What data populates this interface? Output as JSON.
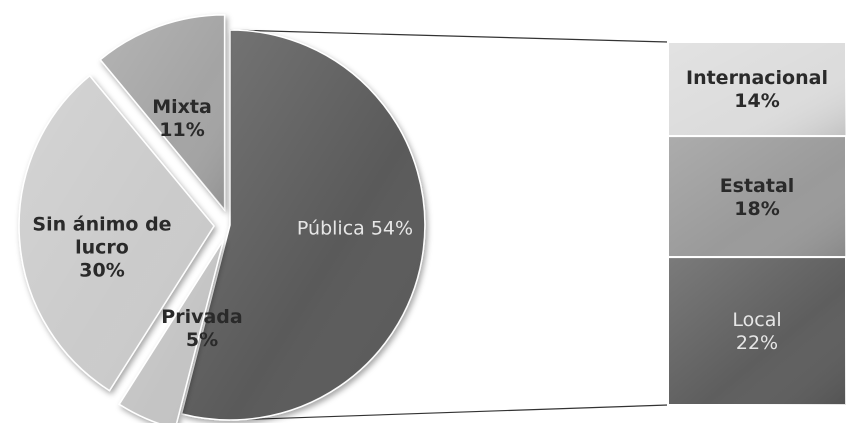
{
  "chart_data": {
    "type": "bar-of-pie",
    "title": "",
    "pie": [
      {
        "label_lines": [
          "Pública 54%"
        ],
        "name": "Pública",
        "value": 54,
        "color": "#5a5a5a",
        "label_color": "#e6e6e6",
        "bold": false
      },
      {
        "label_lines": [
          "Privada",
          "5%"
        ],
        "name": "Privada",
        "value": 5,
        "color": "#c4c4c4",
        "label_color": "#2a2a2a",
        "bold": true
      },
      {
        "label_lines": [
          "Sin ánimo de",
          "lucro",
          "30%"
        ],
        "name": "Sin ánimo de lucro",
        "value": 30,
        "color": "#cbcbcb",
        "label_color": "#2a2a2a",
        "bold": true
      },
      {
        "label_lines": [
          "Mixta",
          "11%"
        ],
        "name": "Mixta",
        "value": 11,
        "color": "#a4a4a4",
        "label_color": "#2a2a2a",
        "bold": true
      }
    ],
    "breakdown_of": "Pública",
    "bar": [
      {
        "label_lines": [
          "Internacional",
          "14%"
        ],
        "name": "Internacional",
        "value": 14,
        "color": "#dcdcdc",
        "label_color": "#2a2a2a",
        "bold": true
      },
      {
        "label_lines": [
          "Estatal",
          "18%"
        ],
        "name": "Estatal",
        "value": 18,
        "color": "#9a9a9a",
        "label_color": "#2a2a2a",
        "bold": true
      },
      {
        "label_lines": [
          "Local",
          "22%"
        ],
        "name": "Local",
        "value": 22,
        "color": "#5e5e5e",
        "label_color": "#e6e6e6",
        "bold": false
      }
    ]
  }
}
